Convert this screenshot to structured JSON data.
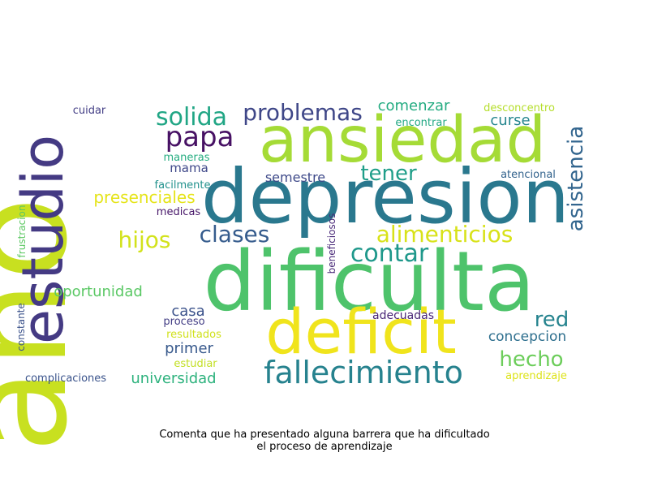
{
  "caption": {
    "line1": "Comenta que ha presentado alguna barrera que ha dificultado",
    "line2": "el proceso de aprendizaje"
  },
  "words": [
    {
      "text": "año",
      "color": "#c8e020"
    },
    {
      "text": "dificulta",
      "color": "#4ec36b"
    },
    {
      "text": "depresion",
      "color": "#2a788e"
    },
    {
      "text": "ansiedad",
      "color": "#a5db36"
    },
    {
      "text": "estudio",
      "color": "#443a83"
    },
    {
      "text": "deficit",
      "color": "#f0e41c"
    },
    {
      "text": "fallecimiento",
      "color": "#26828e"
    },
    {
      "text": "alimenticios",
      "color": "#d8e219"
    },
    {
      "text": "asistencia",
      "color": "#32658e"
    },
    {
      "text": "contar",
      "color": "#1f988b"
    },
    {
      "text": "problemas",
      "color": "#3f4788"
    },
    {
      "text": "solida",
      "color": "#21a685"
    },
    {
      "text": "papa",
      "color": "#471164"
    },
    {
      "text": "clases",
      "color": "#365c8d"
    },
    {
      "text": "hijos",
      "color": "#d2e21b"
    },
    {
      "text": "tener",
      "color": "#1f9e89"
    },
    {
      "text": "hecho",
      "color": "#6ccd5a"
    },
    {
      "text": "red",
      "color": "#25838e"
    },
    {
      "text": "presenciales",
      "color": "#e5e419"
    },
    {
      "text": "universidad",
      "color": "#2db27d"
    },
    {
      "text": "oportunidad",
      "color": "#5ac864"
    },
    {
      "text": "comenzar",
      "color": "#25ac82"
    },
    {
      "text": "concepcion",
      "color": "#2e6f8e"
    },
    {
      "text": "casa",
      "color": "#3b528b"
    },
    {
      "text": "primer",
      "color": "#38598c"
    },
    {
      "text": "curse",
      "color": "#25858e"
    },
    {
      "text": "semestre",
      "color": "#3e4989"
    },
    {
      "text": "mama",
      "color": "#3f4889"
    },
    {
      "text": "adecuadas",
      "color": "#482576"
    },
    {
      "text": "complicaciones",
      "color": "#3a538b"
    },
    {
      "text": "desconcentro",
      "color": "#b5de2b"
    },
    {
      "text": "encontrar",
      "color": "#22a884"
    },
    {
      "text": "atencional",
      "color": "#33638d"
    },
    {
      "text": "cuidar",
      "color": "#433e85"
    },
    {
      "text": "maneras",
      "color": "#26ad81"
    },
    {
      "text": "facilmente",
      "color": "#21918c"
    },
    {
      "text": "medicas",
      "color": "#48186a"
    },
    {
      "text": "proceso",
      "color": "#433e85"
    },
    {
      "text": "resultados",
      "color": "#d0e11c"
    },
    {
      "text": "estudiar",
      "color": "#c2df23"
    },
    {
      "text": "aprendizaje",
      "color": "#dde318"
    },
    {
      "text": "frustracion",
      "color": "#5cc863"
    },
    {
      "text": "constante",
      "color": "#3b528b"
    },
    {
      "text": "beneficiosos",
      "color": "#482878"
    }
  ]
}
